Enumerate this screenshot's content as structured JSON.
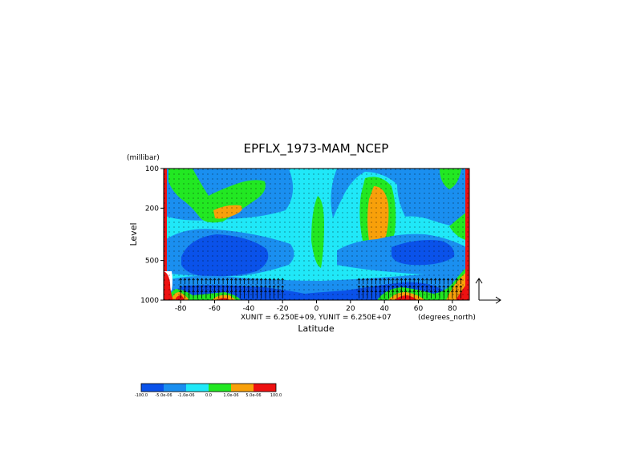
{
  "chart_data": {
    "type": "heatmap",
    "title": "EPFLX_1973-MAM_NCEP",
    "xlabel": "Latitude",
    "ylabel": "Level",
    "y_unit_label": "(millibar)",
    "x_unit_label": "(degrees_north)",
    "vector_scale_label": "XUNIT = 6.250E+09, YUNIT = 6.250E+07",
    "x_ticks": [
      "-80",
      "-60",
      "-40",
      "-20",
      "0",
      "20",
      "40",
      "60",
      "80"
    ],
    "x_tick_values": [
      -80,
      -60,
      -40,
      -20,
      0,
      20,
      40,
      60,
      80
    ],
    "y_ticks": [
      "100",
      "200",
      "500",
      "1000"
    ],
    "y_tick_values": [
      100,
      200,
      500,
      1000
    ],
    "xlim": [
      -90,
      90
    ],
    "ylim": [
      1000,
      100
    ],
    "y_scale": "log",
    "grid": "dotted",
    "colorbar": {
      "colors": [
        "#0a52ea",
        "#1a8ff0",
        "#20e8f8",
        "#22e822",
        "#f8a00a",
        "#ee1111"
      ],
      "labels": [
        "-100.0",
        "-5.0e-06",
        "-1.0e-06",
        "0.0",
        "1.0e-06",
        "5.0e-06",
        "100.0"
      ]
    }
  }
}
